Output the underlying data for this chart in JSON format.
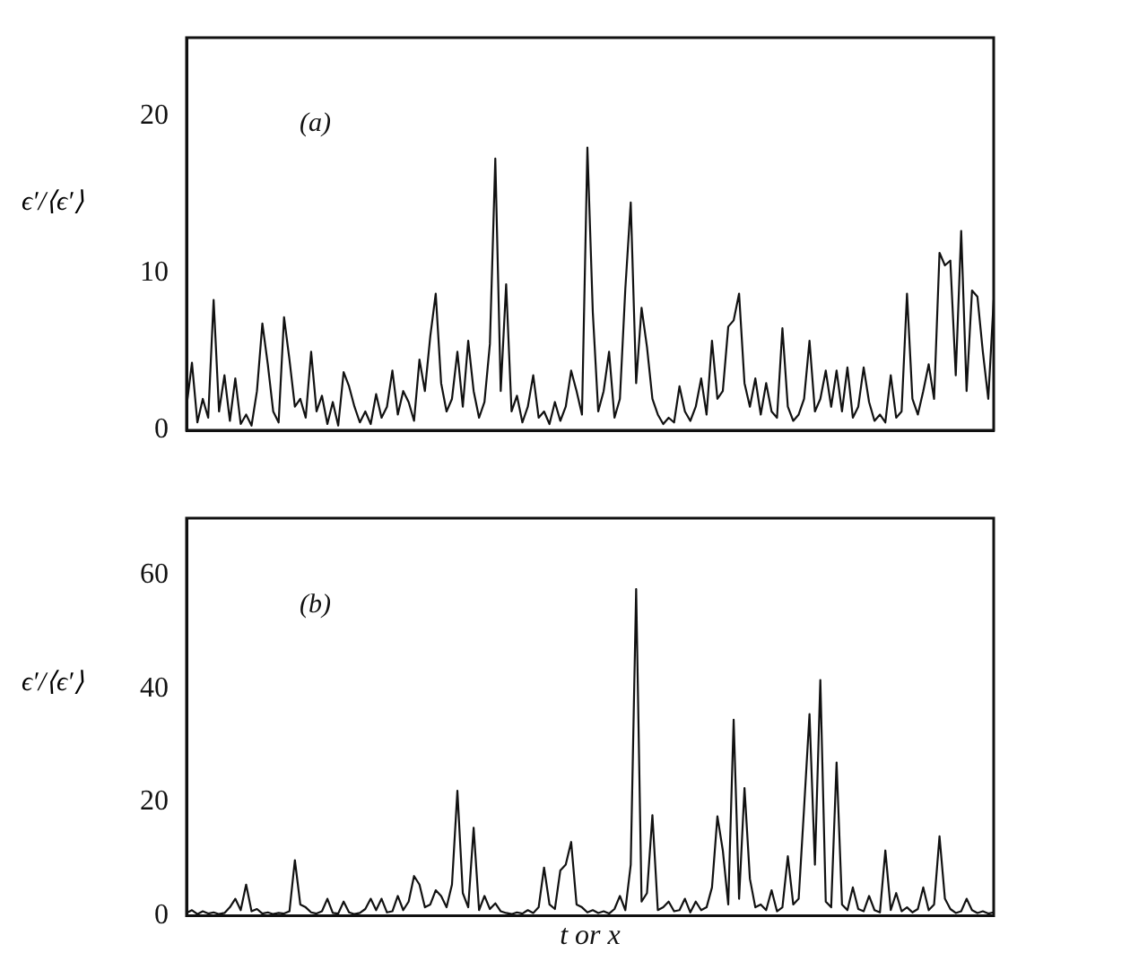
{
  "chart_data": [
    {
      "type": "line",
      "ylabel": "ϵ′/⟨ϵ′⟩",
      "annotations": [
        "(a)"
      ],
      "color": "#111111",
      "tick_labels": "y",
      "ylim": [
        0,
        25
      ],
      "yticks": [
        0,
        10,
        20
      ],
      "categories": [
        null,
        null,
        null,
        null,
        null,
        null,
        null,
        null,
        null,
        null,
        null,
        null,
        null,
        null,
        null,
        null,
        null,
        null,
        null,
        null,
        null,
        null,
        null,
        null,
        null,
        null,
        null,
        null,
        null,
        null,
        null,
        null,
        null,
        null,
        null,
        null,
        null,
        null,
        null,
        null,
        null,
        null,
        null,
        null,
        null,
        null,
        null,
        null,
        null,
        null,
        null,
        null,
        null,
        null,
        null,
        null,
        null,
        null,
        null,
        null,
        null,
        null,
        null,
        null,
        null,
        null,
        null,
        null,
        null,
        null,
        null,
        null,
        null,
        null,
        null,
        null,
        null,
        null,
        null,
        null,
        null,
        null,
        null,
        null,
        null,
        null,
        null,
        null,
        null,
        null,
        null,
        null,
        null,
        null,
        null,
        null,
        null,
        null,
        null,
        null,
        null,
        null,
        null,
        null,
        null,
        null,
        null,
        null,
        null,
        null,
        null,
        null,
        null,
        null,
        null,
        null,
        null,
        null,
        null,
        null,
        null,
        null,
        null,
        null,
        null,
        null,
        null,
        null,
        null,
        null,
        null,
        null,
        null,
        null,
        null,
        null,
        null,
        null,
        null,
        null,
        null,
        null,
        null,
        null,
        null,
        null,
        null,
        null,
        null,
        null
      ],
      "values": [
        1.5,
        4.3,
        0.5,
        2,
        0.8,
        8.3,
        1.2,
        3.5,
        0.6,
        3.3,
        0.4,
        1,
        0.3,
        2.5,
        6.8,
        4.2,
        1.2,
        0.5,
        7.2,
        4.5,
        1.5,
        2,
        0.8,
        5,
        1.2,
        2.2,
        0.4,
        1.8,
        0.3,
        3.7,
        2.8,
        1.5,
        0.5,
        1.2,
        0.4,
        2.3,
        0.8,
        1.5,
        3.8,
        1,
        2.5,
        1.8,
        0.6,
        4.5,
        2.5,
        6,
        8.7,
        3,
        1.2,
        2,
        5,
        1.5,
        5.7,
        2.5,
        0.8,
        1.8,
        5.5,
        17.3,
        2.5,
        9.3,
        1.2,
        2.2,
        0.5,
        1.5,
        3.5,
        0.8,
        1.2,
        0.4,
        1.8,
        0.6,
        1.5,
        3.8,
        2.5,
        1,
        18,
        7.5,
        1.2,
        2.5,
        5,
        0.8,
        2,
        9,
        14.5,
        3,
        7.8,
        5.3,
        2,
        1,
        0.4,
        0.8,
        0.5,
        2.8,
        1.2,
        0.6,
        1.5,
        3.3,
        1,
        5.7,
        2,
        2.5,
        6.6,
        7,
        8.7,
        3,
        1.5,
        3.3,
        1,
        3,
        1.2,
        0.8,
        6.5,
        1.5,
        0.6,
        1,
        2,
        5.7,
        1.2,
        2,
        3.8,
        1.5,
        3.8,
        1.2,
        4,
        0.8,
        1.5,
        4,
        1.8,
        0.6,
        1,
        0.5,
        3.5,
        0.8,
        1.2,
        8.7,
        2,
        1,
        2.5,
        4.2,
        2,
        11.3,
        10.5,
        10.8,
        3.5,
        12.7,
        2.5,
        8.9,
        8.5,
        5,
        2,
        8.3
      ]
    },
    {
      "type": "line",
      "ylabel": "ϵ′/⟨ϵ′⟩",
      "xlabel": "t or x",
      "annotations": [
        "(b)"
      ],
      "color": "#111111",
      "tick_labels": "y",
      "ylim": [
        0,
        70
      ],
      "yticks": [
        0,
        20,
        40,
        60
      ],
      "categories": [
        null,
        null,
        null,
        null,
        null,
        null,
        null,
        null,
        null,
        null,
        null,
        null,
        null,
        null,
        null,
        null,
        null,
        null,
        null,
        null,
        null,
        null,
        null,
        null,
        null,
        null,
        null,
        null,
        null,
        null,
        null,
        null,
        null,
        null,
        null,
        null,
        null,
        null,
        null,
        null,
        null,
        null,
        null,
        null,
        null,
        null,
        null,
        null,
        null,
        null,
        null,
        null,
        null,
        null,
        null,
        null,
        null,
        null,
        null,
        null,
        null,
        null,
        null,
        null,
        null,
        null,
        null,
        null,
        null,
        null,
        null,
        null,
        null,
        null,
        null,
        null,
        null,
        null,
        null,
        null,
        null,
        null,
        null,
        null,
        null,
        null,
        null,
        null,
        null,
        null,
        null,
        null,
        null,
        null,
        null,
        null,
        null,
        null,
        null,
        null,
        null,
        null,
        null,
        null,
        null,
        null,
        null,
        null,
        null,
        null,
        null,
        null,
        null,
        null,
        null,
        null,
        null,
        null,
        null,
        null,
        null,
        null,
        null,
        null,
        null,
        null,
        null,
        null,
        null,
        null,
        null,
        null,
        null,
        null,
        null,
        null,
        null,
        null,
        null,
        null,
        null,
        null,
        null,
        null,
        null,
        null,
        null,
        null,
        null,
        null
      ],
      "values": [
        0.5,
        1,
        0.3,
        0.8,
        0.4,
        0.6,
        0.3,
        0.5,
        1.5,
        3,
        1,
        5.5,
        0.8,
        1.2,
        0.4,
        0.6,
        0.3,
        0.5,
        0.4,
        0.8,
        9.8,
        2,
        1.5,
        0.6,
        0.4,
        0.8,
        3,
        0.5,
        0.4,
        2.5,
        0.6,
        0.3,
        0.5,
        1.2,
        3,
        1,
        3,
        0.6,
        0.8,
        3.5,
        1,
        2.5,
        7,
        5.5,
        1.5,
        2,
        4.5,
        3.5,
        1.5,
        5.5,
        22,
        4,
        1.5,
        15.5,
        1,
        3.5,
        1.2,
        2.2,
        0.8,
        0.5,
        0.3,
        0.6,
        0.4,
        1,
        0.5,
        1.5,
        8.5,
        2,
        1.2,
        8,
        9,
        13,
        2,
        1.5,
        0.6,
        1,
        0.5,
        0.8,
        0.4,
        1.2,
        3.5,
        1,
        9,
        57.5,
        2.5,
        4,
        17.7,
        1,
        1.5,
        2.5,
        0.8,
        1,
        3,
        0.6,
        2.5,
        1,
        1.5,
        5,
        17.5,
        11.5,
        2,
        34.5,
        3,
        22.5,
        6.5,
        1.5,
        2,
        1,
        4.5,
        0.8,
        1.5,
        10.5,
        2,
        3,
        19,
        35.5,
        9,
        41.5,
        2.5,
        1.5,
        27,
        2,
        1,
        5,
        1.2,
        0.8,
        3.5,
        1,
        0.6,
        11.5,
        1,
        4,
        0.8,
        1.5,
        0.6,
        1.2,
        5,
        1,
        2,
        14,
        3,
        1.2,
        0.5,
        0.8,
        3,
        1,
        0.5,
        0.8,
        0.4,
        0.6
      ]
    }
  ]
}
